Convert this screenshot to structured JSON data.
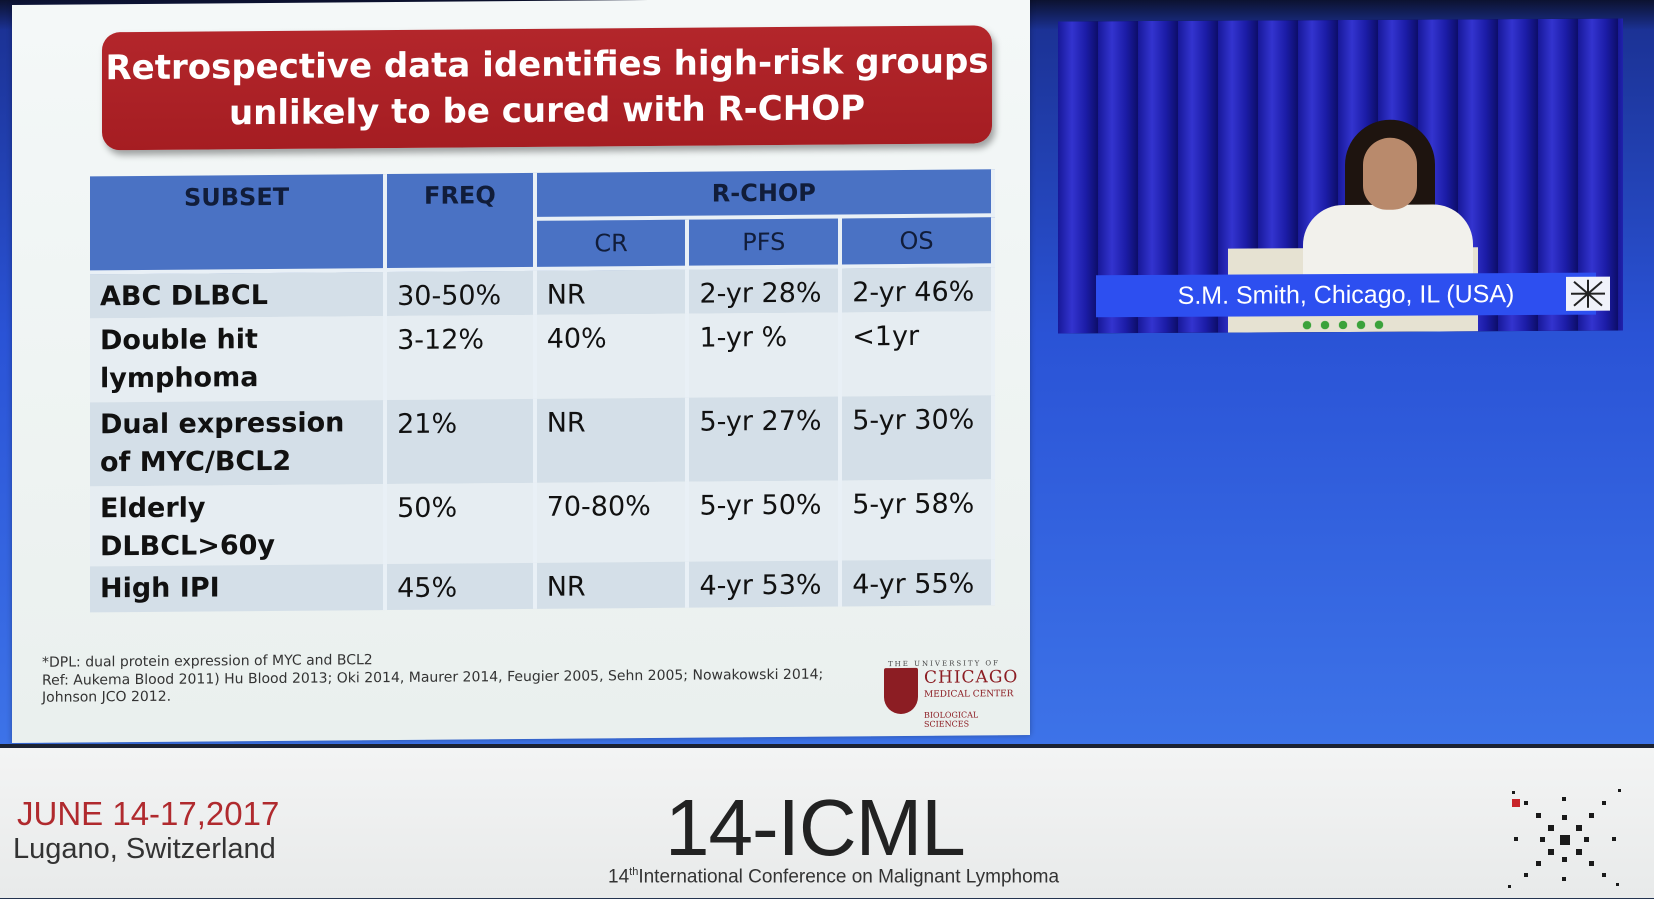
{
  "slide": {
    "title": "Retrospective data identifies high-risk groups\nunlikely to be cured with R-CHOP",
    "table": {
      "headers": {
        "subset": "SUBSET",
        "freq": "FREQ",
        "group": "R-CHOP",
        "cr": "CR",
        "pfs": "PFS",
        "os": "OS"
      },
      "rows": [
        {
          "subset": "ABC DLBCL",
          "freq": "30-50%",
          "cr": "NR",
          "pfs": "2-yr 28%",
          "os": "2-yr 46%"
        },
        {
          "subset": "Double hit lymphoma",
          "freq": "3-12%",
          "cr": "40%",
          "pfs": "1-yr %",
          "os": "<1yr"
        },
        {
          "subset": "Dual expression of MYC/BCL2",
          "freq": "21%",
          "cr": "NR",
          "pfs": "5-yr 27%",
          "os": "5-yr 30%"
        },
        {
          "subset": "Elderly DLBCL>60y",
          "freq": "50%",
          "cr": "70-80%",
          "pfs": "5-yr 50%",
          "os": "5-yr 58%"
        },
        {
          "subset": "High IPI",
          "freq": "45%",
          "cr": "NR",
          "pfs": "4-yr 53%",
          "os": "4-yr 55%"
        }
      ]
    },
    "footnote": "*DPL: dual protein expression of MYC and BCL2",
    "reference": "Ref: Aukema Blood 2011) Hu Blood 2013; Oki 2014, Maurer 2014, Feugier 2005, Sehn 2005; Nowakowski 2014; Johnson JCO 2012.",
    "logo": {
      "top_line": "THE UNIVERSITY OF",
      "name": "CHICAGO",
      "medical": "MEDICAL CENTER",
      "bio": "BIOLOGICAL SCIENCES"
    }
  },
  "video": {
    "speaker_caption": "S.M. Smith, Chicago, IL (USA)"
  },
  "banner": {
    "dates": "JUNE 14-17,2017",
    "location": "Lugano, Switzerland",
    "conference": "14-ICML",
    "conference_sup": "th",
    "conference_sub_number": "14",
    "conference_sub": "International Conference on Malignant Lymphoma"
  },
  "colors": {
    "title_red": "#b3262b",
    "table_header_blue": "#4a72c4",
    "date_red": "#b02a2e",
    "screen_blue": "#2a53d6"
  }
}
